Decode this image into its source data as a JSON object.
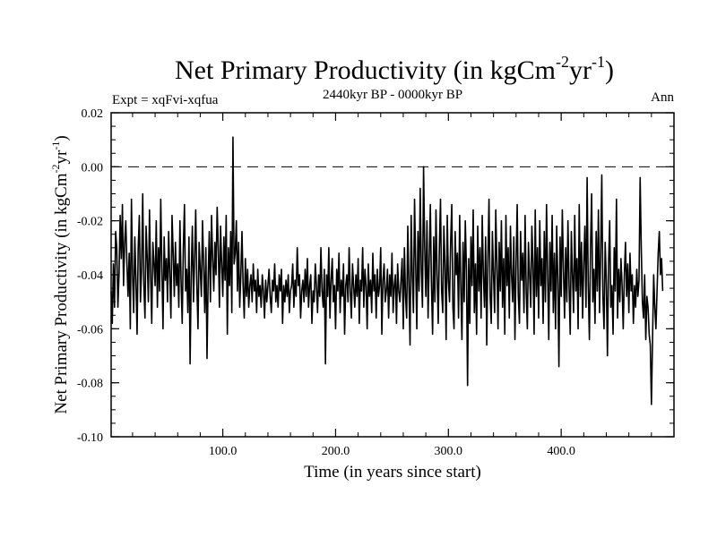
{
  "chart_data": {
    "type": "line",
    "title": "Net Primary Productivity (in kgCm",
    "title_sup1": "-2",
    "title_mid": "yr",
    "title_sup2": "-1",
    "title_end": ")",
    "left_label": "Expt = xqFvi-xqfua",
    "center_label": "2440kyr BP - 0000kyr BP",
    "right_label": "Ann",
    "xlabel": "Time (in years since start)",
    "ylabel": "Net Primary Productivity (in kgCm",
    "ylabel_sup1": "-2",
    "ylabel_mid": "yr",
    "ylabel_sup2": "-1",
    "ylabel_end": ")",
    "xlim": [
      1,
      500
    ],
    "ylim": [
      -0.1,
      0.02
    ],
    "xticks": [
      100,
      200,
      300,
      400
    ],
    "xtick_labels": [
      "100.0",
      "200.0",
      "300.0",
      "400.0"
    ],
    "yticks": [
      0.02,
      0.0,
      -0.02,
      -0.04,
      -0.06,
      -0.08,
      -0.1
    ],
    "ytick_labels": [
      "0.02",
      "0.00",
      "-0.02",
      "-0.04",
      "-0.06",
      "-0.08",
      "-0.10"
    ],
    "reference_line": 0.0,
    "series": [
      {
        "name": "Ann",
        "x_start": 1,
        "x_step": 1,
        "values": [
          -0.046,
          -0.058,
          -0.036,
          -0.052,
          -0.024,
          -0.03,
          -0.052,
          -0.04,
          -0.018,
          -0.034,
          -0.014,
          -0.044,
          -0.028,
          -0.02,
          -0.036,
          -0.048,
          -0.032,
          -0.06,
          -0.012,
          -0.04,
          -0.054,
          -0.026,
          -0.042,
          -0.062,
          -0.03,
          -0.018,
          -0.05,
          -0.038,
          -0.01,
          -0.044,
          -0.056,
          -0.022,
          -0.034,
          -0.05,
          -0.016,
          -0.04,
          -0.058,
          -0.028,
          -0.036,
          -0.044,
          -0.02,
          -0.052,
          -0.03,
          -0.046,
          -0.012,
          -0.038,
          -0.06,
          -0.026,
          -0.042,
          -0.034,
          -0.05,
          -0.024,
          -0.04,
          -0.056,
          -0.018,
          -0.032,
          -0.048,
          -0.028,
          -0.044,
          -0.036,
          -0.052,
          -0.02,
          -0.042,
          -0.058,
          -0.03,
          -0.014,
          -0.046,
          -0.038,
          -0.054,
          -0.026,
          -0.073,
          -0.04,
          -0.022,
          -0.05,
          -0.034,
          -0.016,
          -0.044,
          -0.06,
          -0.028,
          -0.038,
          -0.048,
          -0.02,
          -0.036,
          -0.054,
          -0.03,
          -0.071,
          -0.042,
          -0.024,
          -0.05,
          -0.018,
          -0.034,
          -0.046,
          -0.028,
          -0.04,
          -0.015,
          -0.03,
          -0.052,
          -0.022,
          -0.036,
          -0.048,
          -0.026,
          -0.042,
          -0.018,
          -0.062,
          -0.03,
          -0.044,
          -0.024,
          -0.054,
          0.011,
          -0.036,
          -0.032,
          -0.02,
          -0.046,
          -0.028,
          -0.052,
          -0.04,
          -0.024,
          -0.044,
          -0.056,
          -0.034,
          -0.048,
          -0.038,
          -0.052,
          -0.044,
          -0.04,
          -0.05,
          -0.036,
          -0.046,
          -0.042,
          -0.054,
          -0.038,
          -0.048,
          -0.044,
          -0.052,
          -0.04,
          -0.046,
          -0.056,
          -0.042,
          -0.05,
          -0.044,
          -0.038,
          -0.048,
          -0.054,
          -0.042,
          -0.046,
          -0.036,
          -0.05,
          -0.044,
          -0.052,
          -0.04,
          -0.046,
          -0.038,
          -0.058,
          -0.044,
          -0.05,
          -0.042,
          -0.048,
          -0.04,
          -0.054,
          -0.046,
          -0.044,
          -0.036,
          -0.052,
          -0.042,
          -0.048,
          -0.03,
          -0.044,
          -0.04,
          -0.056,
          -0.046,
          -0.042,
          -0.05,
          -0.038,
          -0.048,
          -0.034,
          -0.052,
          -0.044,
          -0.04,
          -0.058,
          -0.046,
          -0.05,
          -0.036,
          -0.044,
          -0.054,
          -0.04,
          -0.048,
          -0.03,
          -0.046,
          -0.052,
          -0.038,
          -0.073,
          -0.04,
          -0.048,
          -0.03,
          -0.056,
          -0.042,
          -0.034,
          -0.05,
          -0.044,
          -0.06,
          -0.038,
          -0.046,
          -0.032,
          -0.054,
          -0.042,
          -0.048,
          -0.036,
          -0.062,
          -0.044,
          -0.04,
          -0.05,
          -0.03,
          -0.046,
          -0.056,
          -0.036,
          -0.044,
          -0.052,
          -0.04,
          -0.048,
          -0.034,
          -0.058,
          -0.042,
          -0.046,
          -0.03,
          -0.052,
          -0.038,
          -0.044,
          -0.06,
          -0.036,
          -0.048,
          -0.042,
          -0.054,
          -0.032,
          -0.046,
          -0.04,
          -0.056,
          -0.038,
          -0.048,
          -0.044,
          -0.03,
          -0.062,
          -0.042,
          -0.036,
          -0.05,
          -0.046,
          -0.038,
          -0.056,
          -0.04,
          -0.048,
          -0.032,
          -0.054,
          -0.044,
          -0.04,
          -0.058,
          -0.036,
          -0.046,
          -0.05,
          -0.042,
          -0.034,
          -0.06,
          -0.03,
          -0.048,
          -0.056,
          -0.022,
          -0.044,
          -0.066,
          -0.018,
          -0.04,
          -0.054,
          -0.012,
          -0.036,
          -0.06,
          -0.024,
          -0.046,
          -0.008,
          -0.038,
          -0.052,
          0.0,
          -0.03,
          -0.048,
          -0.02,
          -0.056,
          -0.034,
          -0.014,
          -0.044,
          -0.062,
          -0.026,
          -0.05,
          -0.016,
          -0.04,
          -0.058,
          -0.03,
          -0.012,
          -0.046,
          -0.054,
          -0.022,
          -0.036,
          -0.064,
          -0.018,
          -0.042,
          -0.05,
          -0.028,
          -0.014,
          -0.052,
          -0.06,
          -0.024,
          -0.04,
          -0.032,
          -0.056,
          -0.018,
          -0.044,
          -0.064,
          -0.028,
          -0.05,
          -0.02,
          -0.038,
          -0.081,
          -0.034,
          -0.058,
          -0.026,
          -0.044,
          -0.016,
          -0.054,
          -0.036,
          -0.062,
          -0.022,
          -0.046,
          -0.03,
          -0.056,
          -0.018,
          -0.04,
          -0.052,
          -0.026,
          -0.066,
          -0.034,
          -0.012,
          -0.048,
          -0.058,
          -0.024,
          -0.04,
          -0.054,
          -0.016,
          -0.036,
          -0.06,
          -0.028,
          -0.046,
          -0.02,
          -0.052,
          -0.034,
          -0.062,
          -0.018,
          -0.044,
          -0.03,
          -0.056,
          -0.022,
          -0.04,
          -0.05,
          -0.026,
          -0.064,
          -0.036,
          -0.014,
          -0.048,
          -0.058,
          -0.024,
          -0.042,
          -0.032,
          -0.054,
          -0.018,
          -0.046,
          -0.06,
          -0.028,
          -0.04,
          -0.052,
          -0.022,
          -0.036,
          -0.062,
          -0.016,
          -0.048,
          -0.03,
          -0.056,
          -0.02,
          -0.044,
          -0.034,
          -0.058,
          -0.024,
          -0.05,
          -0.014,
          -0.04,
          -0.064,
          -0.028,
          -0.046,
          -0.018,
          -0.054,
          -0.032,
          -0.06,
          -0.022,
          -0.042,
          -0.074,
          -0.026,
          -0.048,
          -0.016,
          -0.038,
          -0.056,
          -0.03,
          -0.05,
          -0.02,
          -0.044,
          -0.062,
          -0.024,
          -0.04,
          -0.054,
          -0.018,
          -0.046,
          -0.034,
          -0.06,
          -0.014,
          -0.048,
          -0.028,
          -0.056,
          -0.036,
          -0.022,
          -0.052,
          -0.004,
          -0.044,
          -0.064,
          -0.03,
          -0.01,
          -0.05,
          -0.038,
          -0.058,
          -0.024,
          -0.046,
          -0.016,
          -0.054,
          -0.032,
          -0.003,
          -0.048,
          -0.06,
          -0.028,
          -0.042,
          -0.07,
          -0.036,
          -0.02,
          -0.052,
          -0.044,
          -0.062,
          -0.03,
          -0.046,
          -0.012,
          -0.056,
          -0.038,
          -0.05,
          -0.034,
          -0.044,
          -0.06,
          -0.04,
          -0.028,
          -0.048,
          -0.036,
          -0.054,
          -0.032,
          -0.046,
          -0.04,
          -0.058,
          -0.044,
          -0.052,
          -0.038,
          -0.048,
          -0.042,
          -0.004,
          -0.03,
          -0.05,
          -0.056,
          -0.04,
          -0.064,
          -0.048,
          -0.052,
          -0.062,
          -0.066,
          -0.088,
          -0.064,
          -0.04,
          -0.052,
          -0.06,
          -0.046,
          -0.032,
          -0.024,
          -0.04,
          -0.034,
          -0.046
        ]
      }
    ]
  }
}
